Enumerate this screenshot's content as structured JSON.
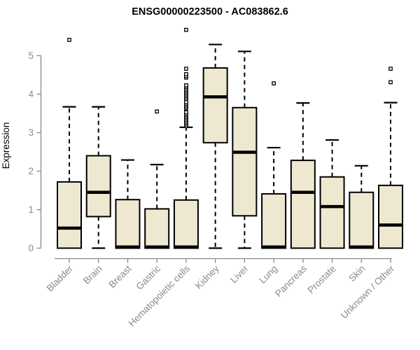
{
  "chart_data": {
    "type": "boxplot",
    "title": "ENSG00000223500 - AC083862.6",
    "ylabel": "Expression",
    "xlabel": "",
    "ylim": [
      0,
      5.8
    ],
    "yticks": [
      0,
      1,
      2,
      3,
      4,
      5
    ],
    "grid": false,
    "legend": "none",
    "categories": [
      "Bladder",
      "Brain",
      "Breast",
      "Gastric",
      "Hematopoietic cells",
      "Kidney",
      "Liver",
      "Lung",
      "Pancreas",
      "Prostate",
      "Skin",
      "Unknown / Other"
    ],
    "series": [
      {
        "name": "Bladder",
        "whisker_low": 0,
        "q1": 0,
        "median": 0.52,
        "q3": 1.72,
        "whisker_high": 3.67,
        "outliers": [
          5.41
        ]
      },
      {
        "name": "Brain",
        "whisker_low": 0,
        "q1": 0.82,
        "median": 1.45,
        "q3": 2.4,
        "whisker_high": 3.67,
        "outliers": []
      },
      {
        "name": "Breast",
        "whisker_low": 0,
        "q1": 0,
        "median": 0.03,
        "q3": 1.26,
        "whisker_high": 2.29,
        "outliers": []
      },
      {
        "name": "Gastric",
        "whisker_low": 0,
        "q1": 0,
        "median": 0.03,
        "q3": 1.02,
        "whisker_high": 2.17,
        "outliers": [
          3.55
        ]
      },
      {
        "name": "Hematopoietic cells",
        "whisker_low": 0,
        "q1": 0,
        "median": 0.03,
        "q3": 1.25,
        "whisker_high": 3.14,
        "outliers": [
          3.17,
          3.21,
          3.25,
          3.29,
          3.33,
          3.37,
          3.41,
          3.45,
          3.49,
          3.53,
          3.63,
          3.67,
          3.71,
          3.75,
          3.79,
          3.87,
          3.91,
          3.95,
          3.99,
          4.03,
          4.07,
          4.11,
          4.15,
          4.19,
          4.23,
          4.43,
          4.47,
          4.52,
          4.66,
          5.67
        ]
      },
      {
        "name": "Kidney",
        "whisker_low": 0,
        "q1": 2.74,
        "median": 3.93,
        "q3": 4.68,
        "whisker_high": 5.29,
        "outliers": []
      },
      {
        "name": "Liver",
        "whisker_low": 0,
        "q1": 0.84,
        "median": 2.49,
        "q3": 3.65,
        "whisker_high": 5.11,
        "outliers": []
      },
      {
        "name": "Lung",
        "whisker_low": 0,
        "q1": 0,
        "median": 0.03,
        "q3": 1.41,
        "whisker_high": 2.61,
        "outliers": [
          4.28
        ]
      },
      {
        "name": "Pancreas",
        "whisker_low": 0,
        "q1": 0,
        "median": 1.45,
        "q3": 2.28,
        "whisker_high": 3.77,
        "outliers": []
      },
      {
        "name": "Prostate",
        "whisker_low": 0,
        "q1": 0,
        "median": 1.08,
        "q3": 1.85,
        "whisker_high": 2.81,
        "outliers": []
      },
      {
        "name": "Skin",
        "whisker_low": 0,
        "q1": 0,
        "median": 0.03,
        "q3": 1.45,
        "whisker_high": 2.14,
        "outliers": []
      },
      {
        "name": "Unknown / Other",
        "whisker_low": 0,
        "q1": 0,
        "median": 0.6,
        "q3": 1.63,
        "whisker_high": 3.78,
        "outliers": [
          4.31,
          4.66
        ]
      }
    ],
    "colors": {
      "box_fill": "#EDE8CF",
      "box_stroke": "#000000",
      "median": "#000000",
      "whisker": "#000000",
      "outlier_fill": "#FFFFFF",
      "outlier_stroke": "#000000",
      "axis": "#888888",
      "tick_label": "#8A8A8A",
      "title": "#000000",
      "background": "#FFFFFF"
    }
  }
}
